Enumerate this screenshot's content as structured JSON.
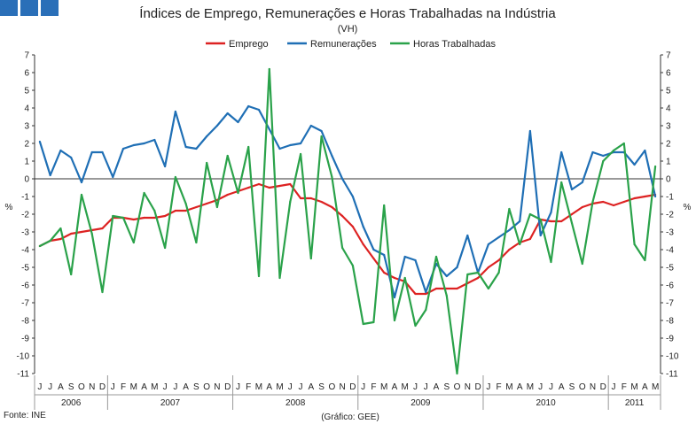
{
  "chart_data": {
    "type": "line",
    "title": "Índices de Emprego, Remunerações e Horas Trabalhadas na Indústria",
    "subtitle": "(VH)",
    "ylabel_left": "%",
    "ylabel_right": "%",
    "ylim": [
      -11,
      7
    ],
    "yticks": [
      7,
      6,
      5,
      4,
      3,
      2,
      1,
      0,
      -1,
      -2,
      -3,
      -4,
      -5,
      -6,
      -7,
      -8,
      -9,
      -10,
      -11
    ],
    "grid": false,
    "legend_position": "top",
    "source": "Fonte: INE",
    "credit": "(Gráfico: GEE)",
    "month_labels": [
      "J",
      "J",
      "A",
      "S",
      "O",
      "N",
      "D",
      "J",
      "F",
      "M",
      "A",
      "M",
      "J",
      "J",
      "A",
      "S",
      "O",
      "N",
      "D",
      "J",
      "F",
      "M",
      "A",
      "M",
      "J",
      "J",
      "A",
      "S",
      "O",
      "N",
      "D",
      "J",
      "F",
      "M",
      "A",
      "M",
      "J",
      "J",
      "A",
      "S",
      "O",
      "N",
      "D",
      "J",
      "F",
      "M",
      "A",
      "M",
      "J",
      "J",
      "A",
      "S",
      "O",
      "N",
      "D",
      "J",
      "F",
      "M",
      "A",
      "M"
    ],
    "year_groups": [
      {
        "label": "2006",
        "months": 7
      },
      {
        "label": "2007",
        "months": 12
      },
      {
        "label": "2008",
        "months": 12
      },
      {
        "label": "2009",
        "months": 12
      },
      {
        "label": "2010",
        "months": 12
      },
      {
        "label": "2011",
        "months": 5
      }
    ],
    "series": [
      {
        "name": "Emprego",
        "color": "#dd2222",
        "values": [
          -3.8,
          -3.5,
          -3.4,
          -3.1,
          -3.0,
          -2.9,
          -2.8,
          -2.2,
          -2.2,
          -2.3,
          -2.2,
          -2.2,
          -2.1,
          -1.8,
          -1.8,
          -1.6,
          -1.4,
          -1.2,
          -0.9,
          -0.7,
          -0.5,
          -0.3,
          -0.5,
          -0.4,
          -0.3,
          -1.1,
          -1.1,
          -1.3,
          -1.6,
          -2.1,
          -2.7,
          -3.7,
          -4.5,
          -5.3,
          -5.6,
          -5.8,
          -6.5,
          -6.5,
          -6.2,
          -6.2,
          -6.2,
          -5.9,
          -5.6,
          -5.0,
          -4.6,
          -4.0,
          -3.6,
          -3.4,
          -2.3,
          -2.4,
          -2.4,
          -2.0,
          -1.6,
          -1.4,
          -1.3,
          -1.5,
          -1.3,
          -1.1,
          -1.0,
          -0.9
        ]
      },
      {
        "name": "Remunerações",
        "color": "#1f6fb5",
        "values": [
          2.1,
          0.2,
          1.6,
          1.2,
          -0.2,
          1.5,
          1.5,
          0.1,
          1.7,
          1.9,
          2.0,
          2.2,
          0.7,
          3.8,
          1.8,
          1.7,
          2.4,
          3.0,
          3.7,
          3.2,
          4.1,
          3.9,
          2.8,
          1.7,
          1.9,
          2.0,
          3.0,
          2.7,
          1.3,
          0.0,
          -1.0,
          -2.7,
          -4.0,
          -4.3,
          -6.7,
          -4.4,
          -4.6,
          -6.4,
          -4.8,
          -5.5,
          -5.0,
          -3.2,
          -5.3,
          -3.7,
          -3.3,
          -2.9,
          -2.4,
          2.7,
          -3.2,
          -1.9,
          1.5,
          -0.6,
          -0.2,
          1.5,
          1.3,
          1.5,
          1.5,
          0.8,
          1.6,
          -1.0
        ]
      },
      {
        "name": "Horas Trabalhadas",
        "color": "#2aa24a",
        "values": [
          -3.8,
          -3.5,
          -2.8,
          -5.4,
          -0.9,
          -3.1,
          -6.4,
          -2.1,
          -2.2,
          -3.6,
          -0.8,
          -1.8,
          -3.9,
          0.1,
          -1.4,
          -3.6,
          0.9,
          -1.6,
          1.3,
          -0.8,
          1.8,
          -5.5,
          6.2,
          -5.6,
          -1.3,
          1.4,
          -4.5,
          2.4,
          0.1,
          -3.9,
          -4.9,
          -8.2,
          -8.1,
          -1.5,
          -8.0,
          -5.6,
          -8.3,
          -7.4,
          -4.4,
          -6.6,
          -11.0,
          -5.4,
          -5.3,
          -6.2,
          -5.3,
          -1.7,
          -3.7,
          -2.0,
          -2.3,
          -4.7,
          -0.2,
          -2.5,
          -4.8,
          -1.3,
          1.0,
          1.6,
          2.0,
          -3.7,
          -4.6,
          0.7
        ]
      }
    ]
  }
}
